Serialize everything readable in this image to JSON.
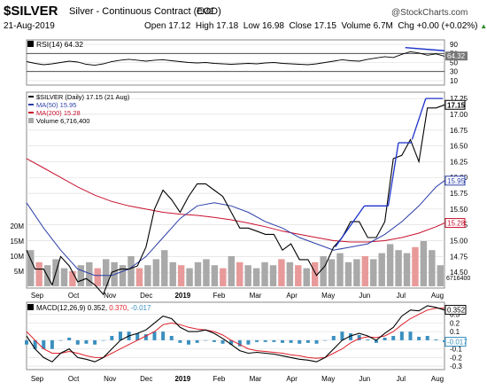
{
  "header": {
    "symbol": "$SILVER",
    "contract": "Silver - Continuous Contract (EOD)",
    "exchange": "CME",
    "date": "21-Aug-2019",
    "open_label": "Open",
    "open": "17.12",
    "high_label": "High",
    "high": "17.18",
    "low_label": "Low",
    "low": "16.98",
    "close_label": "Close",
    "close": "17.15",
    "volume_label": "Volume",
    "volume": "6.7M",
    "chg_label": "Chg",
    "chg": "+0.00 (+0.02%)",
    "up_arrow": "▲",
    "watermark": "@StockCharts.com"
  },
  "colors": {
    "price": "#000000",
    "ma50": "#2b3ea8",
    "ma200": "#c8102e",
    "volume_up": "#a9a9a9",
    "volume_down": "#e89a9a",
    "trendline": "#1b32c8",
    "macd": "#000000",
    "signal": "#e0202a",
    "histogram": "#3a8fbf",
    "grid": "#d9d9d9"
  },
  "chart_data": [
    {
      "type": "line",
      "panel": "RSI",
      "legend": "RSI(14) 64.32",
      "ylim": [
        0,
        100
      ],
      "y_ticks": [
        10,
        30,
        50,
        70,
        90
      ],
      "reference_lines": [
        30,
        70
      ],
      "last_value_label": "64.32",
      "x": [
        0,
        5,
        10,
        15,
        20,
        25,
        30,
        35,
        40,
        45,
        50,
        55,
        60,
        65,
        70,
        75,
        80,
        85,
        90,
        95,
        100,
        105,
        110,
        115,
        120,
        125,
        130,
        135,
        140,
        145,
        150,
        155,
        160,
        165,
        170,
        175,
        180,
        185,
        190,
        195,
        200,
        205,
        210,
        215,
        220,
        225,
        230,
        235,
        240,
        245
      ],
      "y": [
        52,
        48,
        45,
        47,
        50,
        53,
        51,
        46,
        44,
        47,
        52,
        55,
        57,
        55,
        53,
        55,
        56,
        54,
        52,
        50,
        49,
        50,
        48,
        47,
        46,
        47,
        48,
        47,
        49,
        50,
        48,
        47,
        46,
        45,
        47,
        50,
        53,
        56,
        54,
        53,
        57,
        60,
        63,
        61,
        68,
        74,
        71,
        66,
        69,
        64
      ]
    },
    {
      "type": "line",
      "panel": "Price",
      "legend": [
        "$SILVER (Daily) 17.15 (21 Aug)",
        "MA(50) 15.95",
        "MA(200) 15.28",
        "Volume 6,716,400"
      ],
      "series": [
        {
          "name": "$SILVER (Daily) 17.15 (21 Aug)",
          "x": [
            0,
            5,
            10,
            15,
            20,
            25,
            30,
            35,
            40,
            45,
            50,
            55,
            60,
            65,
            70,
            75,
            80,
            85,
            90,
            95,
            100,
            105,
            110,
            115,
            120,
            125,
            130,
            135,
            140,
            145,
            150,
            155,
            160,
            165,
            170,
            175,
            180,
            185,
            190,
            195,
            200,
            205,
            210,
            215,
            220,
            225,
            230,
            235,
            240,
            245
          ],
          "values": [
            14.85,
            14.55,
            14.55,
            14.3,
            14.75,
            14.6,
            14.35,
            14.4,
            14.3,
            14.15,
            14.5,
            14.55,
            14.55,
            14.6,
            14.9,
            15.5,
            15.8,
            15.65,
            15.45,
            15.7,
            15.9,
            15.9,
            15.8,
            15.7,
            15.45,
            15.2,
            15.2,
            15.15,
            15.1,
            15.1,
            14.85,
            14.95,
            14.7,
            14.7,
            14.45,
            14.6,
            14.9,
            15.05,
            15.3,
            15.3,
            15.05,
            15.05,
            15.3,
            16.3,
            16.35,
            16.6,
            16.25,
            17.1,
            17.1,
            17.15
          ]
        },
        {
          "name": "MA(50) 15.95",
          "x": [
            0,
            10,
            20,
            30,
            40,
            50,
            60,
            70,
            80,
            90,
            100,
            110,
            120,
            130,
            140,
            150,
            160,
            170,
            180,
            190,
            200,
            210,
            220,
            230,
            240,
            245
          ],
          "values": [
            15.6,
            15.2,
            14.85,
            14.55,
            14.45,
            14.45,
            14.55,
            14.75,
            15.05,
            15.35,
            15.55,
            15.6,
            15.55,
            15.45,
            15.3,
            15.2,
            15.05,
            14.95,
            14.85,
            14.9,
            14.95,
            15.1,
            15.3,
            15.55,
            15.85,
            15.95
          ]
        },
        {
          "name": "MA(200) 15.28",
          "x": [
            0,
            10,
            20,
            30,
            40,
            50,
            60,
            70,
            80,
            90,
            100,
            110,
            120,
            130,
            140,
            150,
            160,
            170,
            180,
            190,
            200,
            210,
            220,
            230,
            240,
            245
          ],
          "values": [
            16.3,
            16.15,
            16.0,
            15.85,
            15.72,
            15.62,
            15.55,
            15.5,
            15.45,
            15.42,
            15.4,
            15.37,
            15.33,
            15.28,
            15.22,
            15.15,
            15.1,
            15.05,
            15.0,
            14.98,
            14.98,
            15.0,
            15.05,
            15.12,
            15.22,
            15.28
          ]
        }
      ],
      "volume_millions": [
        12,
        8,
        7,
        9,
        6,
        5,
        7,
        8,
        6,
        9,
        8,
        7,
        10,
        6,
        7,
        9,
        12,
        8,
        7,
        6,
        8,
        9,
        7,
        6,
        10,
        8,
        7,
        6,
        8,
        7,
        9,
        8,
        7,
        6,
        8,
        10,
        9,
        11,
        8,
        9,
        10,
        9,
        11,
        14,
        12,
        11,
        13,
        15,
        12,
        7
      ],
      "volume_down_days": [
        1,
        5,
        8,
        13,
        18,
        23,
        25,
        30,
        32,
        34,
        40,
        46
      ],
      "y_ticks": [
        "14.50",
        "14.75",
        "15.00",
        "15.25",
        "15.50",
        "15.75",
        "16.00",
        "16.25",
        "16.50",
        "16.75",
        "17.00",
        "17.25"
      ],
      "volume_ticks": [
        "5M",
        "10M",
        "15M",
        "20M"
      ],
      "tags": [
        "17.15",
        "15.95",
        "15.28",
        "6716400"
      ]
    },
    {
      "type": "line",
      "panel": "MACD",
      "legend_prefix": "MACD(12,26,9)",
      "legend_values": [
        "0.352",
        "0.370",
        "-0.017"
      ],
      "y_ticks": [
        "-0.3",
        "-0.2",
        "-0.1",
        "0.0",
        "0.1",
        "0.2",
        "0.3"
      ],
      "x_labels": [
        "Sep",
        "Oct",
        "Nov",
        "Dec",
        "2019",
        "Feb",
        "Mar",
        "Apr",
        "May",
        "Jun",
        "Jul",
        "Aug"
      ],
      "tags": [
        "0.352",
        "-0.017"
      ],
      "series": [
        {
          "name": "MACD",
          "values": [
            0.05,
            -0.1,
            -0.2,
            -0.25,
            -0.15,
            -0.1,
            -0.2,
            -0.22,
            -0.25,
            -0.2,
            -0.1,
            0.0,
            0.05,
            0.08,
            0.12,
            0.2,
            0.28,
            0.25,
            0.15,
            0.1,
            0.1,
            0.12,
            0.08,
            0.02,
            -0.05,
            -0.12,
            -0.15,
            -0.14,
            -0.15,
            -0.16,
            -0.18,
            -0.2,
            -0.22,
            -0.23,
            -0.25,
            -0.2,
            -0.1,
            0.0,
            0.05,
            0.08,
            0.05,
            0.0,
            0.08,
            0.15,
            0.28,
            0.35,
            0.34,
            0.4,
            0.38,
            0.35
          ]
        },
        {
          "name": "Signal",
          "values": [
            0.1,
            0.0,
            -0.1,
            -0.15,
            -0.15,
            -0.13,
            -0.15,
            -0.18,
            -0.2,
            -0.2,
            -0.15,
            -0.1,
            -0.05,
            0.0,
            0.05,
            0.1,
            0.18,
            0.2,
            0.18,
            0.15,
            0.13,
            0.12,
            0.1,
            0.06,
            0.0,
            -0.05,
            -0.1,
            -0.12,
            -0.13,
            -0.14,
            -0.15,
            -0.17,
            -0.18,
            -0.2,
            -0.21,
            -0.2,
            -0.15,
            -0.1,
            -0.03,
            0.02,
            0.04,
            0.03,
            0.05,
            0.1,
            0.18,
            0.25,
            0.3,
            0.35,
            0.37,
            0.37
          ]
        }
      ]
    }
  ]
}
